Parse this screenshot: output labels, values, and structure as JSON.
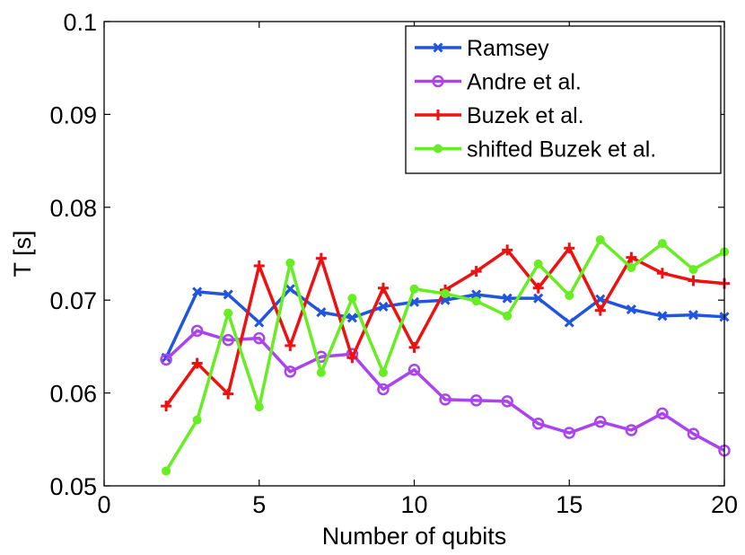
{
  "chart_data": {
    "type": "line",
    "title": "",
    "xlabel": "Number of qubits",
    "ylabel": "T [s]",
    "xlim": [
      0,
      20
    ],
    "ylim": [
      0.05,
      0.1
    ],
    "grid": false,
    "legend_position": "top-right",
    "x_ticks": [
      0,
      5,
      10,
      15,
      20
    ],
    "x_tick_labels": [
      "0",
      "5",
      "10",
      "15",
      "20"
    ],
    "y_ticks": [
      0.05,
      0.06,
      0.07,
      0.08,
      0.09,
      0.1
    ],
    "y_tick_labels": [
      "0.05",
      "0.06",
      "0.07",
      "0.08",
      "0.09",
      "0.1"
    ],
    "x": [
      2,
      3,
      4,
      5,
      6,
      7,
      8,
      9,
      10,
      11,
      12,
      13,
      14,
      15,
      16,
      17,
      18,
      19,
      20
    ],
    "series": [
      {
        "name": "Ramsey",
        "color": "#2255dd",
        "marker": "x",
        "values": [
          0.0638,
          0.0709,
          0.0706,
          0.0676,
          0.0712,
          0.0687,
          0.0681,
          0.0693,
          0.0698,
          0.07,
          0.0706,
          0.0702,
          0.0702,
          0.0676,
          0.0701,
          0.069,
          0.0683,
          0.0684,
          0.0682
        ]
      },
      {
        "name": "Andre et al.",
        "color": "#aa44ee",
        "marker": "o",
        "values": [
          0.0636,
          0.0667,
          0.0657,
          0.0659,
          0.0623,
          0.0639,
          0.0642,
          0.0604,
          0.0625,
          0.0593,
          0.0592,
          0.0591,
          0.0567,
          0.0557,
          0.0569,
          0.056,
          0.0578,
          0.0556,
          0.0538
        ]
      },
      {
        "name": "Buzek et al.",
        "color": "#ee1111",
        "marker": "+",
        "values": [
          0.0586,
          0.0632,
          0.0599,
          0.0737,
          0.0651,
          0.0745,
          0.0638,
          0.0713,
          0.0649,
          0.0711,
          0.0731,
          0.0754,
          0.0713,
          0.0756,
          0.0689,
          0.0746,
          0.0729,
          0.0721,
          0.0718
        ]
      },
      {
        "name": "shifted Buzek et al.",
        "color": "#66ee22",
        "marker": "dot",
        "values": [
          0.0516,
          0.0571,
          0.0686,
          0.0585,
          0.074,
          0.0622,
          0.0702,
          0.0622,
          0.0712,
          0.0707,
          0.0699,
          0.0683,
          0.0739,
          0.0705,
          0.0765,
          0.0735,
          0.0761,
          0.0733,
          0.0752
        ]
      }
    ]
  }
}
